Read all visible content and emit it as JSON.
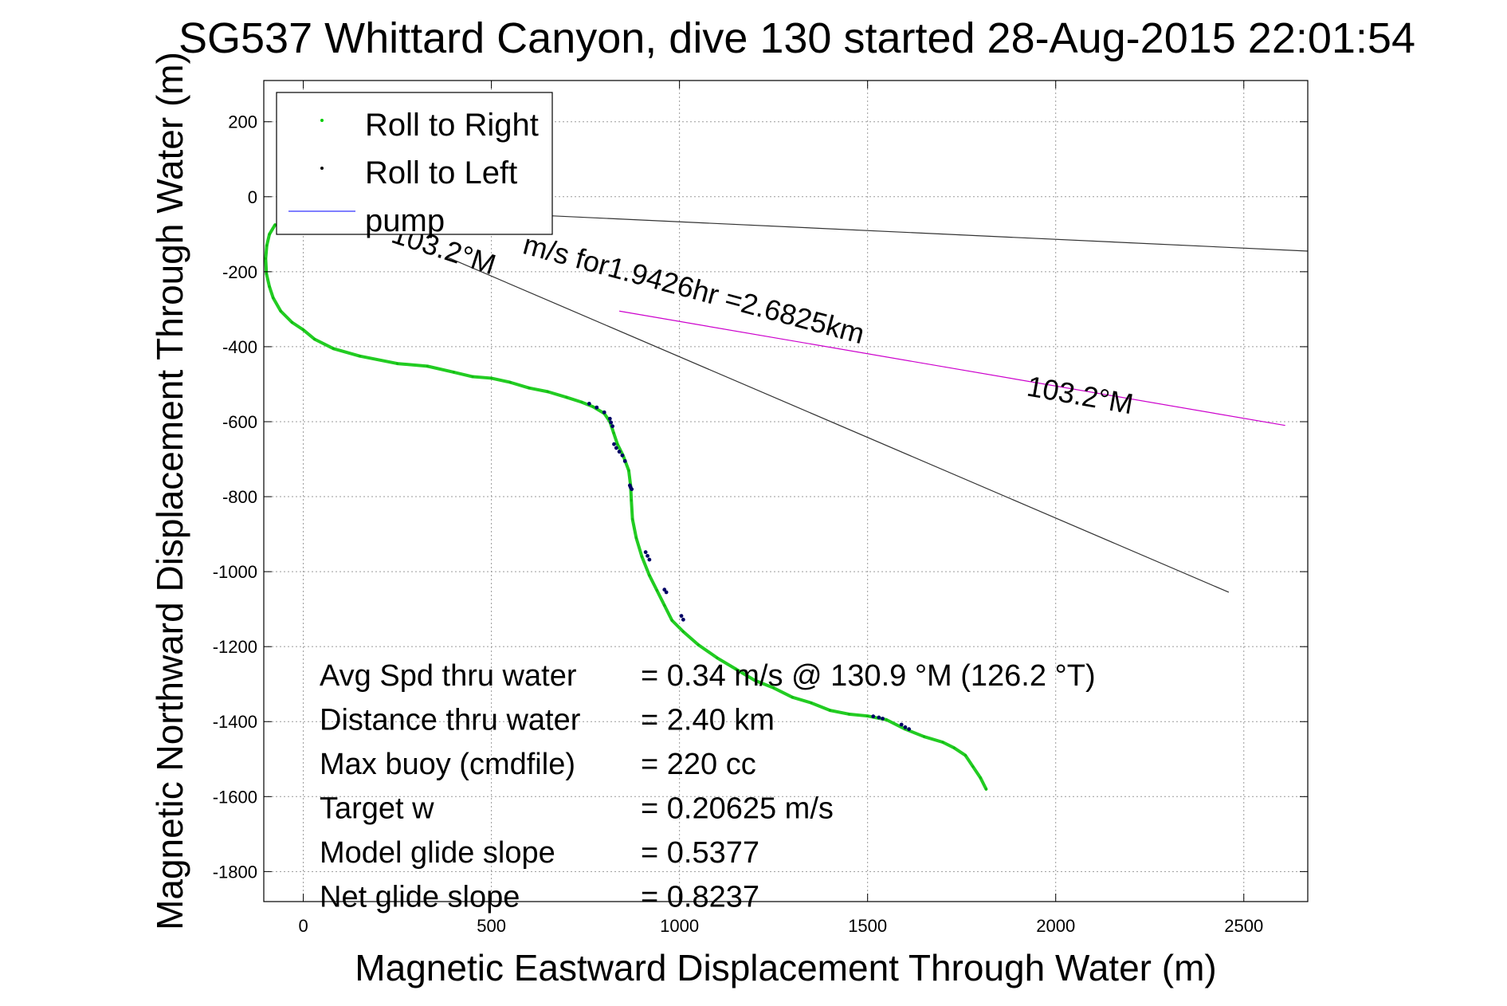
{
  "chart_data": {
    "type": "line",
    "title": "SG537 Whittard Canyon, dive 130 started 28-Aug-2015 22:01:54",
    "xlabel": "Magnetic Eastward Displacement Through Water (m)",
    "ylabel": "Magnetic Northward Displacement Through Water (m)",
    "xlim": [
      -105,
      2670
    ],
    "ylim": [
      -1880,
      310
    ],
    "xticks": [
      0,
      500,
      1000,
      1500,
      2000,
      2500
    ],
    "yticks": [
      200,
      0,
      -200,
      -400,
      -600,
      -800,
      -1000,
      -1200,
      -1400,
      -1600,
      -1800
    ],
    "grid": true,
    "legend_position": "top-left",
    "legend": [
      {
        "label": "Roll to Right",
        "color": "#00cc00",
        "kind": "marker"
      },
      {
        "label": "Roll to Left",
        "color": "#000000",
        "kind": "marker"
      },
      {
        "label": "pump",
        "color": "#5555ff",
        "kind": "line"
      }
    ],
    "series": [
      {
        "name": "Roll to Right",
        "color": "#22cc22",
        "x": [
          -75,
          -90,
          -97,
          -100,
          -98,
          -90,
          -80,
          -60,
          -30,
          0,
          30,
          80,
          150,
          250,
          330,
          400,
          450,
          500,
          550,
          600,
          650,
          700,
          740,
          770,
          800,
          815,
          825,
          835,
          850,
          865,
          870,
          872,
          875,
          885,
          900,
          920,
          940,
          960,
          980,
          1010,
          1050,
          1100,
          1150,
          1200,
          1250,
          1300,
          1350,
          1400,
          1450,
          1500,
          1550,
          1600,
          1650,
          1700,
          1730,
          1760,
          1780,
          1800,
          1815
        ],
        "y": [
          -75,
          -100,
          -130,
          -165,
          -205,
          -240,
          -270,
          -305,
          -335,
          -355,
          -380,
          -405,
          -425,
          -445,
          -452,
          -468,
          -480,
          -484,
          -495,
          -510,
          -520,
          -535,
          -548,
          -560,
          -578,
          -600,
          -630,
          -660,
          -690,
          -730,
          -770,
          -810,
          -860,
          -910,
          -960,
          -1010,
          -1050,
          -1090,
          -1130,
          -1160,
          -1195,
          -1230,
          -1260,
          -1290,
          -1310,
          -1335,
          -1350,
          -1370,
          -1380,
          -1385,
          -1395,
          -1420,
          -1440,
          -1455,
          -1470,
          -1490,
          -1520,
          -1550,
          -1580
        ]
      },
      {
        "name": "Roll to Left",
        "color": "#000066",
        "x": [
          760,
          780,
          800,
          815,
          818,
          822,
          826,
          832,
          840,
          848,
          855,
          868,
          870,
          873,
          910,
          915,
          920,
          960,
          965,
          1005,
          1010,
          1515,
          1530,
          1540,
          1590,
          1600,
          1610
        ],
        "y": [
          -552,
          -562,
          -575,
          -592,
          -602,
          -612,
          -660,
          -670,
          -680,
          -690,
          -705,
          -770,
          -775,
          -780,
          -948,
          -958,
          -968,
          -1048,
          -1055,
          -1118,
          -1128,
          -1386,
          -1389,
          -1392,
          -1408,
          -1415,
          -1420
        ]
      }
    ],
    "lines": [
      {
        "name": "upper heading line",
        "color": "#333333",
        "x": [
          0,
          2670
        ],
        "y": [
          -20,
          -145
        ]
      },
      {
        "name": "lower heading line",
        "color": "#333333",
        "x": [
          380,
          2460
        ],
        "y": [
          -160,
          -1055
        ]
      },
      {
        "name": "magenta course line",
        "color": "#cc00cc",
        "x": [
          840,
          2610
        ],
        "y": [
          -305,
          -610
        ]
      }
    ],
    "annotations": [
      {
        "text": "103.2°M",
        "x": 230,
        "y": -120,
        "rotation": 18
      },
      {
        "text": "m/s for1.9426hr =2.6825km",
        "x": 580,
        "y": -150,
        "rotation": 15
      },
      {
        "text": "103.2°M",
        "x": 1920,
        "y": -530,
        "rotation": 10
      }
    ],
    "stats": [
      {
        "label": "Avg Spd thru water",
        "value": "=  0.34 m/s @ 130.9 °M (126.2 °T)"
      },
      {
        "label": "Distance thru water",
        "value": "=  2.40 km"
      },
      {
        "label": "Max buoy (cmdfile)",
        "value": "= 220 cc"
      },
      {
        "label": "Target w",
        "value": "= 0.20625 m/s"
      },
      {
        "label": "Model glide slope",
        "value": "= 0.5377"
      },
      {
        "label": "Net glide slope",
        "value": "= 0.8237"
      }
    ]
  }
}
